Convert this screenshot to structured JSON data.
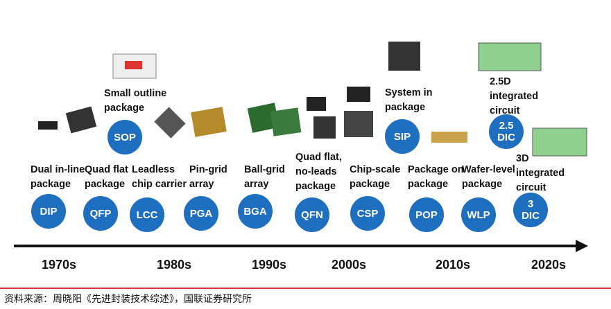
{
  "items": [
    {
      "code": "DIP",
      "label": "Dual in-line\npackage"
    },
    {
      "code": "QFP",
      "label": "Quad flat\npackage"
    },
    {
      "code": "LCC",
      "label": "Leadless\nchip carrier"
    },
    {
      "code": "PGA",
      "label": "Pin-grid\narray"
    },
    {
      "code": "BGA",
      "label": "Ball-grid\narray"
    },
    {
      "code": "QFN",
      "label": "Quad flat,\nno-leads\npackage"
    },
    {
      "code": "CSP",
      "label": "Chip-scale\npackage"
    },
    {
      "code": "POP",
      "label": "Package on\npackage"
    },
    {
      "code": "WLP",
      "label": "Wafer-level\npackage"
    },
    {
      "code": "3\nDIC",
      "label": "3D\nintegrated\ncircuit"
    },
    {
      "code": "SOP",
      "label": "Small outline\npackage"
    },
    {
      "code": "SIP",
      "label": "System in\npackage"
    },
    {
      "code": "2.5\nDIC",
      "label": "2.5D\nintegrated\ncircuit"
    }
  ],
  "decades": [
    "1970s",
    "1980s",
    "1990s",
    "2000s",
    "2010s",
    "2020s"
  ],
  "source": "资料来源：周晓阳《先进封装技术综述》，国联证券研究所"
}
